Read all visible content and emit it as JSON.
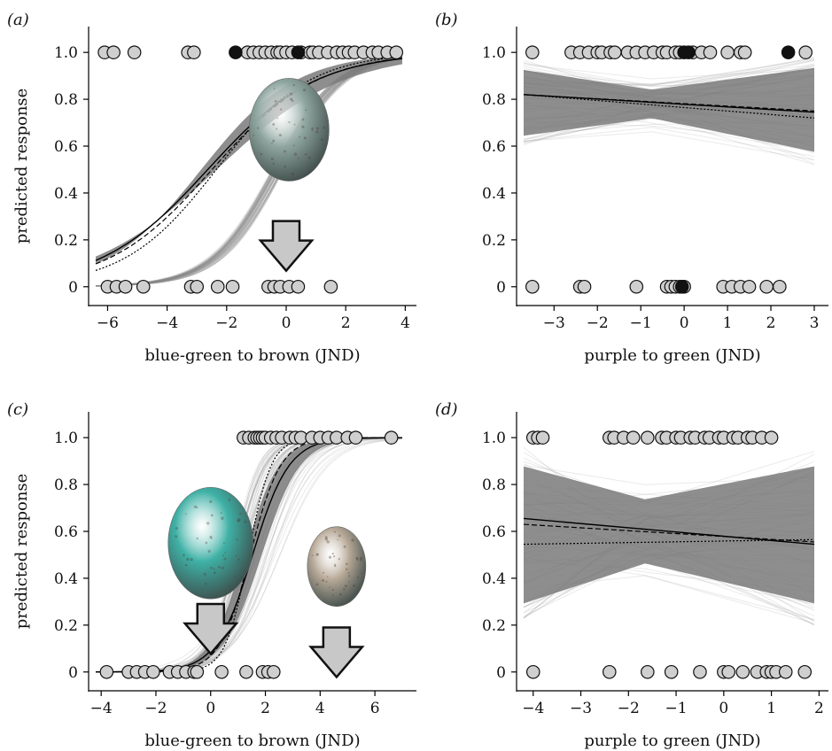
{
  "chart_data": [
    {
      "panel": "(a)",
      "type": "scatter",
      "xlabel": "blue-green to brown (JND)",
      "ylabel": "predicted response",
      "xlim": [
        -6.4,
        3.9
      ],
      "ylim": [
        -0.05,
        1.08
      ],
      "xticks": [
        -6,
        -4,
        -2,
        0,
        2,
        4
      ],
      "yticks": [
        0,
        0.2,
        0.4,
        0.6,
        0.8,
        1.0
      ],
      "yticklabels": [
        "0",
        "0.2",
        "0.4",
        "0.6",
        "0.8",
        "1.0"
      ],
      "model": {
        "kind": "logistic",
        "b0": 1.45,
        "b1": 0.55,
        "band_lo": [
          0.08,
          0.9
        ],
        "band_hi": [
          0.45,
          0.97
        ],
        "dotted": {
          "b0": 1.5,
          "b1": 0.64
        },
        "dashed": {
          "b0": 1.42,
          "b1": 0.57
        }
      },
      "points_y1_grey": [
        -6.1,
        -5.8,
        -5.1,
        -3.3,
        -3.1,
        -1.3,
        -1.1,
        -0.9,
        -0.7,
        -0.5,
        -0.3,
        -0.2,
        0.0,
        0.2,
        0.5,
        0.8,
        0.9,
        1.1,
        1.4,
        1.7,
        1.9,
        2.1,
        2.3,
        2.6,
        2.9,
        3.1,
        3.4,
        3.7
      ],
      "points_y1_black": [
        -1.7,
        0.4
      ],
      "points_y0_grey": [
        -6.0,
        -5.7,
        -5.4,
        -4.8,
        -3.2,
        -3.0,
        -2.3,
        -1.8,
        -0.6,
        -0.4,
        -0.2,
        0.1,
        0.4,
        1.5
      ],
      "inset": {
        "kind": "egg",
        "color": "#8fa6a0",
        "cx": 0.1,
        "cy": 0.67,
        "arrow_x": 0.0
      }
    },
    {
      "panel": "(b)",
      "type": "scatter",
      "xlabel": "purple to green (JND)",
      "ylabel": "",
      "xlim": [
        -3.7,
        3.0
      ],
      "ylim": [
        -0.05,
        1.08
      ],
      "xticks": [
        -3,
        -2,
        -1,
        0,
        1,
        2,
        3
      ],
      "yticks": [
        0,
        0.2,
        0.4,
        0.6,
        0.8,
        1.0
      ],
      "yticklabels": [
        "0",
        "0.2",
        "0.4",
        "0.6",
        "0.8",
        "1.0"
      ],
      "model": {
        "kind": "linear",
        "line": [
          0.82,
          0.745
        ],
        "band_lo": [
          0.6,
          0.7,
          0.52
        ],
        "band_hi": [
          0.97,
          0.86,
          0.99
        ],
        "dotted": [
          0.82,
          0.72
        ],
        "dashed": [
          0.82,
          0.75
        ]
      },
      "points_y1_grey": [
        -3.5,
        -2.6,
        -2.4,
        -2.2,
        -2.0,
        -1.9,
        -1.7,
        -1.6,
        -1.3,
        -1.1,
        -0.9,
        -0.7,
        -0.5,
        -0.4,
        -0.2,
        -0.1,
        0.2,
        0.4,
        0.6,
        1.0,
        1.3,
        1.4,
        2.8
      ],
      "points_y1_black": [
        0.0,
        0.1,
        2.4
      ],
      "points_y0_grey": [
        -3.5,
        -2.4,
        -2.3,
        -1.1,
        -0.4,
        -0.3,
        -0.2,
        -0.1,
        0.0,
        0.9,
        1.1,
        1.3,
        1.5,
        1.9,
        2.2
      ],
      "points_y0_black": [
        -0.05
      ]
    },
    {
      "panel": "(c)",
      "type": "scatter",
      "xlabel": "blue-green to brown (JND)",
      "ylabel": "predicted response",
      "xlim": [
        -4.2,
        7.0
      ],
      "ylim": [
        -0.05,
        1.08
      ],
      "xticks": [
        -4,
        -2,
        0,
        2,
        4,
        6
      ],
      "yticks": [
        0,
        0.2,
        0.4,
        0.6,
        0.8,
        1.0
      ],
      "yticklabels": [
        "0",
        "0.2",
        "0.4",
        "0.6",
        "0.8",
        "1.0"
      ],
      "model": {
        "kind": "logistic",
        "b0": -2.3,
        "b1": 1.5,
        "band_lo": [
          -3.2,
          1.1
        ],
        "band_hi": [
          -1.5,
          2.3
        ],
        "dotted": {
          "b0": -3.3,
          "b1": 2.4
        },
        "dashed": {
          "b0": -2.6,
          "b1": 1.8
        }
      },
      "points_y1_grey": [
        1.2,
        1.4,
        1.6,
        1.7,
        1.8,
        1.9,
        2.0,
        2.2,
        2.4,
        2.6,
        2.9,
        3.1,
        3.3,
        3.7,
        4.0,
        4.3,
        4.6,
        5.0,
        5.3,
        6.6
      ],
      "points_y0_grey": [
        -3.8,
        -3.0,
        -2.7,
        -2.4,
        -2.1,
        -1.5,
        -1.2,
        -0.9,
        -0.6,
        -0.5,
        0.4,
        1.3,
        1.9,
        2.1,
        2.3
      ],
      "inset": {
        "kind": "eggs",
        "eggs": [
          {
            "color": "#3fb1a6",
            "cx": 0.0,
            "cy": 0.55,
            "arrow_x": 0.0
          },
          {
            "color": "#b8aa98",
            "cx": 4.6,
            "cy": 0.45,
            "arrow_x": 4.6
          }
        ]
      }
    },
    {
      "panel": "(d)",
      "type": "scatter",
      "xlabel": "purple to green (JND)",
      "ylabel": "",
      "xlim": [
        -4.2,
        1.9
      ],
      "ylim": [
        -0.05,
        1.08
      ],
      "xticks": [
        -4,
        -3,
        -2,
        -1,
        0,
        1,
        2
      ],
      "yticks": [
        0,
        0.2,
        0.4,
        0.6,
        0.8,
        1.0
      ],
      "yticklabels": [
        "0",
        "0.2",
        "0.4",
        "0.6",
        "0.8",
        "1.0"
      ],
      "model": {
        "kind": "linear",
        "line": [
          0.655,
          0.545
        ],
        "band_lo": [
          0.2,
          0.42,
          0.2
        ],
        "band_hi": [
          0.97,
          0.78,
          0.97
        ],
        "dotted": [
          0.545,
          0.565
        ],
        "dashed": [
          0.63,
          0.555
        ]
      },
      "points_y1_grey": [
        -4.0,
        -3.9,
        -3.8,
        -2.4,
        -2.3,
        -2.1,
        -1.9,
        -1.6,
        -1.3,
        -1.2,
        -1.0,
        -0.9,
        -0.7,
        -0.6,
        -0.4,
        -0.3,
        -0.1,
        0.0,
        0.2,
        0.3,
        0.5,
        0.6,
        0.8,
        1.0
      ],
      "points_y0_grey": [
        -4.0,
        -2.4,
        -1.6,
        -1.1,
        -0.5,
        0.0,
        0.1,
        0.4,
        0.7,
        0.9,
        1.0,
        1.1,
        1.3,
        1.7
      ]
    }
  ]
}
